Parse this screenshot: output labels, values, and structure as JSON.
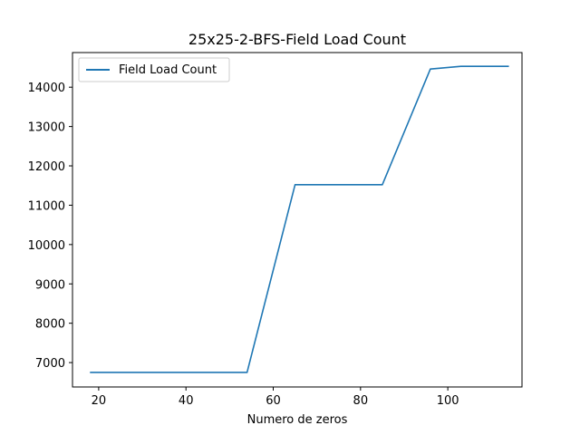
{
  "chart_data": {
    "type": "line",
    "title": "25x25-2-BFS-Field Load Count",
    "xlabel": "Numero de zeros",
    "ylabel": "",
    "xlim": [
      14,
      117
    ],
    "ylim": [
      6380,
      14880
    ],
    "xticks": [
      20,
      40,
      60,
      80,
      100
    ],
    "yticks": [
      7000,
      8000,
      9000,
      10000,
      11000,
      12000,
      13000,
      14000
    ],
    "grid": false,
    "legend_position": "top-left",
    "series": [
      {
        "name": "Field Load Count",
        "color": "#1f77b4",
        "x": [
          18,
          22,
          26,
          30,
          34,
          38,
          42,
          46,
          50,
          54,
          65,
          70,
          75,
          80,
          85,
          96,
          103,
          108,
          114
        ],
        "y": [
          6750,
          6750,
          6750,
          6750,
          6750,
          6750,
          6750,
          6750,
          6750,
          6750,
          11520,
          11520,
          11520,
          11520,
          11520,
          14460,
          14530,
          14530,
          14530
        ]
      }
    ]
  }
}
